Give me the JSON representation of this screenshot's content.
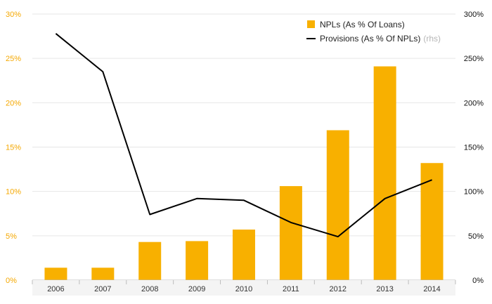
{
  "chart_data": {
    "type": "bar",
    "title": "",
    "categories": [
      "2006",
      "2007",
      "2008",
      "2009",
      "2010",
      "2011",
      "2012",
      "2013",
      "2014"
    ],
    "series": [
      {
        "name": "NPLs (As % Of Loans)",
        "type": "bar",
        "axis": "left",
        "color": "#f8b000",
        "values": [
          1.4,
          1.4,
          4.3,
          4.4,
          5.7,
          10.6,
          16.9,
          24.1,
          13.2
        ]
      },
      {
        "name": "Provisions (As % Of NPLs)",
        "axis_note": "(rhs)",
        "type": "line",
        "axis": "right",
        "color": "#000000",
        "values": [
          278,
          235,
          74,
          92,
          90,
          65,
          49,
          92,
          113
        ]
      }
    ],
    "y_left": {
      "ylim": [
        0,
        30
      ],
      "ticks": [
        "0%",
        "5%",
        "10%",
        "15%",
        "20%",
        "25%",
        "30%"
      ]
    },
    "y_right": {
      "ylim": [
        0,
        300
      ],
      "ticks": [
        "0%",
        "50%",
        "100%",
        "150%",
        "200%",
        "250%",
        "300%"
      ]
    },
    "xlabel": "",
    "ylabel": "",
    "legend_position": "top-right",
    "grid": true
  }
}
